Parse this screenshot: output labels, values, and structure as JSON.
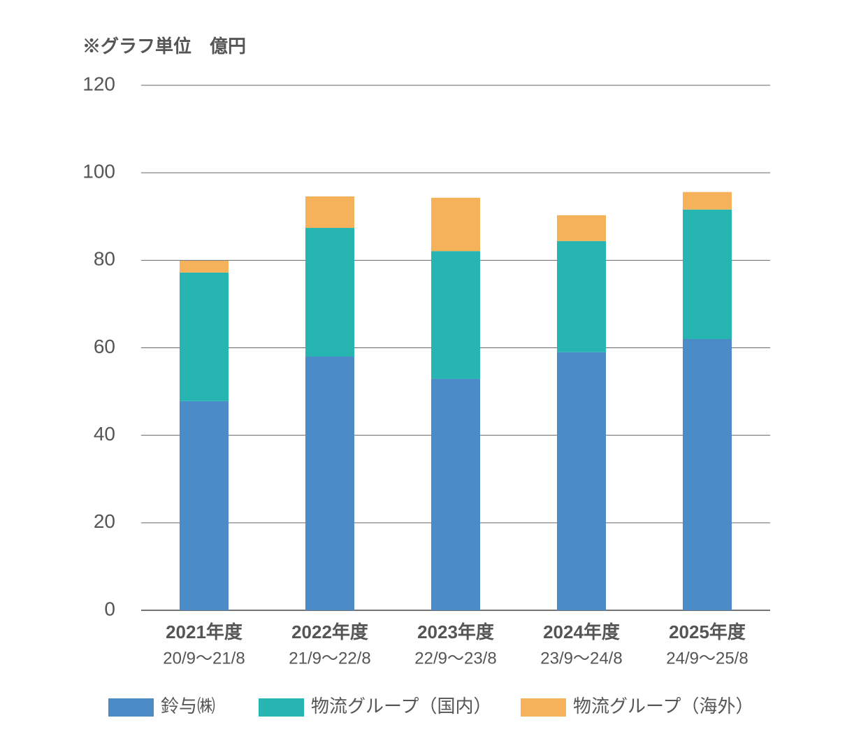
{
  "chart_data": {
    "type": "stacked-bar",
    "title": "※グラフ単位　億円",
    "categories": [
      "2021年度",
      "2022年度",
      "2023年度",
      "2024年度",
      "2025年度"
    ],
    "category_periods": [
      "20/9〜21/8",
      "21/9〜22/8",
      "22/9〜23/8",
      "23/9〜24/8",
      "24/9〜25/8"
    ],
    "series": [
      {
        "name": "鈴与㈱",
        "color": "#4a8bc8",
        "values": [
          47.8,
          58.0,
          52.9,
          59.0,
          62.0
        ]
      },
      {
        "name": "物流グループ（国内）",
        "color": "#26b5b1",
        "values": [
          29.4,
          29.4,
          29.2,
          25.4,
          29.6
        ]
      },
      {
        "name": "物流グループ（海外）",
        "color": "#f5b25a",
        "values": [
          2.7,
          7.2,
          12.2,
          5.9,
          4.0
        ]
      }
    ],
    "ylim": [
      0,
      120
    ],
    "yticks": [
      0,
      20,
      40,
      60,
      80,
      100,
      120
    ],
    "grid": true,
    "legend": "bottom"
  }
}
